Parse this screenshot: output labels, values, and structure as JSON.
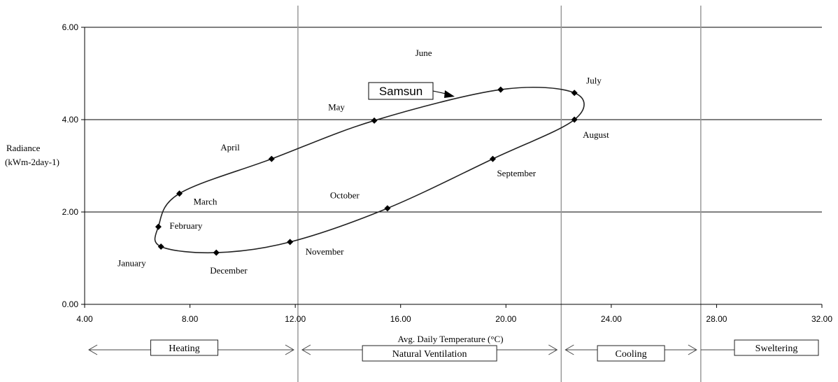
{
  "chart_data": {
    "type": "line",
    "title": "",
    "xlabel": "Avg. Daily Temperature (°C)",
    "ylabel_line1": "Radiance",
    "ylabel_line2": "(kWm-2day-1)",
    "xlim": [
      4,
      32
    ],
    "ylim": [
      0,
      6
    ],
    "x_ticks": [
      {
        "value": 4,
        "label": "4.00"
      },
      {
        "value": 8,
        "label": "8.00"
      },
      {
        "value": 12,
        "label": "12.00"
      },
      {
        "value": 16,
        "label": "16.00"
      },
      {
        "value": 20,
        "label": "20.00"
      },
      {
        "value": 24,
        "label": "24.00"
      },
      {
        "value": 28,
        "label": "28.00"
      },
      {
        "value": 32,
        "label": "32.00"
      }
    ],
    "y_ticks": [
      {
        "value": 0,
        "label": "0.00"
      },
      {
        "value": 2,
        "label": "2.00"
      },
      {
        "value": 4,
        "label": "4.00"
      },
      {
        "value": 6,
        "label": "6.00"
      }
    ],
    "horizontal_gridlines": [
      2,
      4,
      6
    ],
    "zone_boundaries_x": [
      12.1,
      22.1,
      27.4
    ],
    "series": [
      {
        "name": "Samsun",
        "closed": true,
        "points": [
          {
            "label": "January",
            "x": 6.9,
            "y": 1.25
          },
          {
            "label": "February",
            "x": 6.8,
            "y": 1.68
          },
          {
            "label": "March",
            "x": 7.6,
            "y": 2.4
          },
          {
            "label": "April",
            "x": 11.1,
            "y": 3.15
          },
          {
            "label": "May",
            "x": 15.0,
            "y": 3.98
          },
          {
            "label": "June",
            "x": 19.8,
            "y": 4.65
          },
          {
            "label": "July",
            "x": 22.6,
            "y": 4.58
          },
          {
            "label": "August",
            "x": 22.6,
            "y": 4.0
          },
          {
            "label": "September",
            "x": 19.5,
            "y": 3.15
          },
          {
            "label": "October",
            "x": 15.5,
            "y": 2.08
          },
          {
            "label": "November",
            "x": 11.8,
            "y": 1.35
          },
          {
            "label": "December",
            "x": 9.0,
            "y": 1.12
          }
        ]
      }
    ],
    "callout": "Samsun",
    "zones": [
      {
        "label": "Heating",
        "from": 4.0,
        "to": 12.1
      },
      {
        "label": "Natural Ventilation",
        "from": 12.1,
        "to": 22.1
      },
      {
        "label": "Cooling",
        "from": 22.1,
        "to": 27.4
      },
      {
        "label": "Sweltering",
        "from": 27.4,
        "to": 32.0
      }
    ]
  }
}
